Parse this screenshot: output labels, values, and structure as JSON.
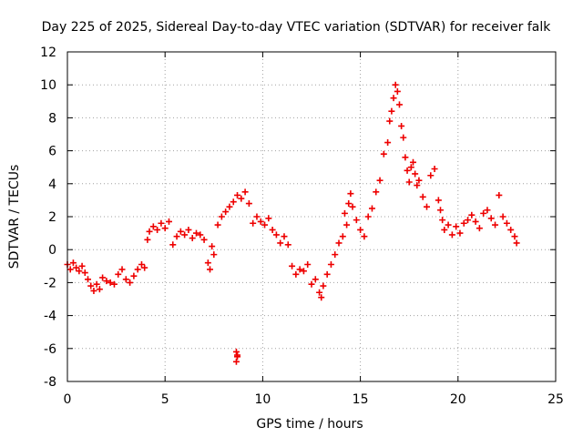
{
  "chart_data": {
    "type": "scatter",
    "title": "Day 225 of 2025, Sidereal Day-to-day VTEC variation (SDTVAR) for receiver falk",
    "xlabel": "GPS time / hours",
    "ylabel": "SDTVAR / TECUs",
    "xlim": [
      0,
      25
    ],
    "ylim": [
      -8,
      12
    ],
    "xticks": [
      0,
      5,
      10,
      15,
      20,
      25
    ],
    "yticks": [
      -8,
      -6,
      -4,
      -2,
      0,
      2,
      4,
      6,
      8,
      10,
      12
    ],
    "xtick_labels": [
      "0",
      "5",
      "10",
      "15",
      "20",
      "25"
    ],
    "ytick_labels": [
      "-8",
      "-6",
      "-4",
      "-2",
      "0",
      "2",
      "4",
      "6",
      "8",
      "10",
      "12"
    ],
    "grid": true,
    "marker": "plus",
    "color": "#ee0000",
    "series": [
      {
        "name": "falk",
        "x": [
          0.0,
          0.15,
          0.3,
          0.45,
          0.6,
          0.75,
          0.9,
          1.05,
          1.2,
          1.35,
          1.5,
          1.65,
          1.8,
          2.0,
          2.2,
          2.4,
          2.6,
          2.8,
          3.0,
          3.2,
          3.4,
          3.6,
          3.8,
          3.95,
          4.1,
          4.2,
          4.4,
          4.6,
          4.8,
          5.0,
          5.2,
          5.4,
          5.6,
          5.8,
          6.0,
          6.2,
          6.4,
          6.6,
          6.8,
          7.0,
          7.2,
          7.3,
          7.4,
          7.5,
          7.7,
          7.9,
          8.1,
          8.3,
          8.5,
          8.7,
          8.9,
          9.1,
          9.3,
          9.5,
          9.7,
          9.9,
          10.1,
          10.3,
          10.5,
          10.7,
          10.9,
          11.1,
          11.3,
          11.5,
          11.7,
          11.9,
          12.1,
          12.3,
          12.5,
          12.7,
          12.9,
          13.0,
          13.1,
          13.3,
          13.5,
          13.7,
          13.9,
          14.1,
          14.2,
          14.3,
          14.4,
          14.5,
          14.6,
          14.8,
          15.0,
          15.2,
          15.4,
          15.6,
          15.8,
          16.0,
          16.2,
          16.4,
          16.5,
          16.6,
          16.7,
          16.8,
          16.9,
          17.0,
          17.1,
          17.2,
          17.3,
          17.4,
          17.5,
          17.6,
          17.7,
          17.8,
          17.9,
          18.0,
          18.2,
          18.4,
          18.6,
          18.8,
          19.0,
          19.1,
          19.2,
          19.3,
          19.5,
          19.7,
          19.9,
          20.1,
          20.3,
          20.5,
          20.7,
          20.9,
          21.1,
          21.3,
          21.5,
          21.7,
          21.9,
          22.1,
          22.3,
          22.5,
          22.7,
          22.9,
          23.0,
          8.65,
          8.7,
          8.65,
          8.7
        ],
        "y": [
          -0.9,
          -1.2,
          -0.8,
          -1.1,
          -1.3,
          -1.0,
          -1.4,
          -1.8,
          -2.2,
          -2.5,
          -2.1,
          -2.4,
          -1.7,
          -1.9,
          -2.0,
          -2.1,
          -1.5,
          -1.2,
          -1.8,
          -2.0,
          -1.6,
          -1.2,
          -0.9,
          -1.1,
          0.6,
          1.1,
          1.4,
          1.2,
          1.6,
          1.3,
          1.7,
          0.3,
          0.8,
          1.1,
          0.9,
          1.2,
          0.7,
          1.0,
          0.9,
          0.6,
          -0.8,
          -1.2,
          0.2,
          -0.3,
          1.5,
          2.0,
          2.3,
          2.6,
          2.9,
          3.3,
          3.1,
          3.5,
          2.8,
          1.6,
          2.0,
          1.7,
          1.5,
          1.9,
          1.2,
          0.9,
          0.4,
          0.8,
          0.3,
          -1.0,
          -1.5,
          -1.2,
          -1.3,
          -0.9,
          -2.1,
          -1.8,
          -2.6,
          -2.9,
          -2.2,
          -1.5,
          -0.9,
          -0.3,
          0.4,
          0.8,
          2.2,
          1.5,
          2.8,
          3.4,
          2.6,
          1.8,
          1.2,
          0.8,
          2.0,
          2.5,
          3.5,
          4.2,
          5.8,
          6.5,
          7.8,
          8.4,
          9.2,
          10.0,
          9.6,
          8.8,
          7.5,
          6.8,
          5.6,
          4.8,
          4.1,
          5.0,
          5.3,
          4.6,
          3.9,
          4.2,
          3.2,
          2.6,
          4.5,
          4.9,
          3.0,
          2.4,
          1.8,
          1.2,
          1.5,
          0.9,
          1.4,
          1.0,
          1.6,
          1.8,
          2.1,
          1.7,
          1.3,
          2.2,
          2.4,
          1.9,
          1.5,
          3.3,
          2.0,
          1.6,
          1.2,
          0.8,
          0.4,
          -6.2,
          -6.5,
          -6.8,
          -6.4
        ]
      }
    ]
  }
}
